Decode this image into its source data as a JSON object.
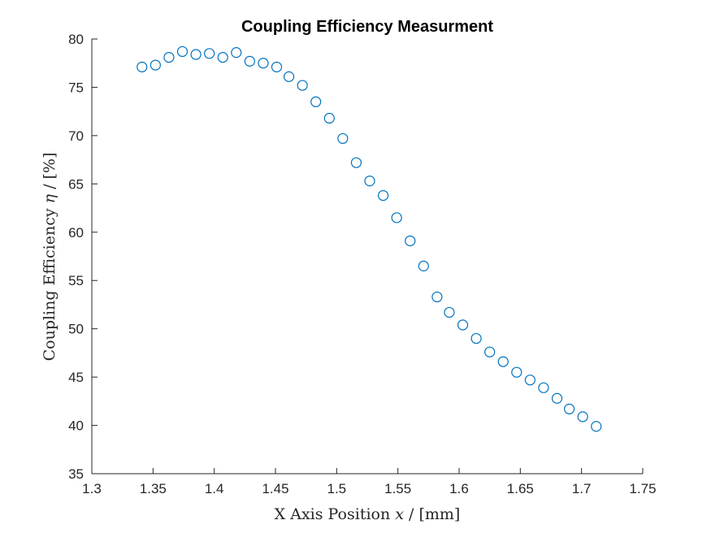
{
  "chart_data": {
    "type": "scatter",
    "title": "Coupling Efficiency Measurment",
    "xlabel": {
      "prefix": "X Axis Position ",
      "var": "x",
      "suffix": " / [mm]"
    },
    "ylabel": {
      "prefix": "Coupling Efficiency ",
      "var": "η",
      "suffix": " / [%]"
    },
    "xlim": [
      1.3,
      1.75
    ],
    "ylim": [
      35,
      80
    ],
    "xticks": [
      "1.3",
      "1.35",
      "1.4",
      "1.45",
      "1.5",
      "1.55",
      "1.6",
      "1.65",
      "1.7",
      "1.75"
    ],
    "yticks": [
      "35",
      "40",
      "45",
      "50",
      "55",
      "60",
      "65",
      "70",
      "75",
      "80"
    ],
    "grid": false,
    "marker": "circle",
    "series_color": "#0072BD",
    "x": [
      1.341,
      1.352,
      1.363,
      1.374,
      1.385,
      1.396,
      1.407,
      1.418,
      1.429,
      1.44,
      1.451,
      1.461,
      1.472,
      1.483,
      1.494,
      1.505,
      1.516,
      1.527,
      1.538,
      1.549,
      1.56,
      1.571,
      1.582,
      1.592,
      1.603,
      1.614,
      1.625,
      1.636,
      1.647,
      1.658,
      1.669,
      1.68,
      1.69,
      1.701,
      1.712
    ],
    "y": [
      77.1,
      77.3,
      78.1,
      78.7,
      78.4,
      78.5,
      78.1,
      78.6,
      77.7,
      77.5,
      77.1,
      76.1,
      75.2,
      73.5,
      71.8,
      69.7,
      67.2,
      65.3,
      63.8,
      61.5,
      59.1,
      56.5,
      53.3,
      51.7,
      50.4,
      49.0,
      47.6,
      46.6,
      45.5,
      44.7,
      43.9,
      42.8,
      41.7,
      40.9,
      39.9
    ]
  }
}
